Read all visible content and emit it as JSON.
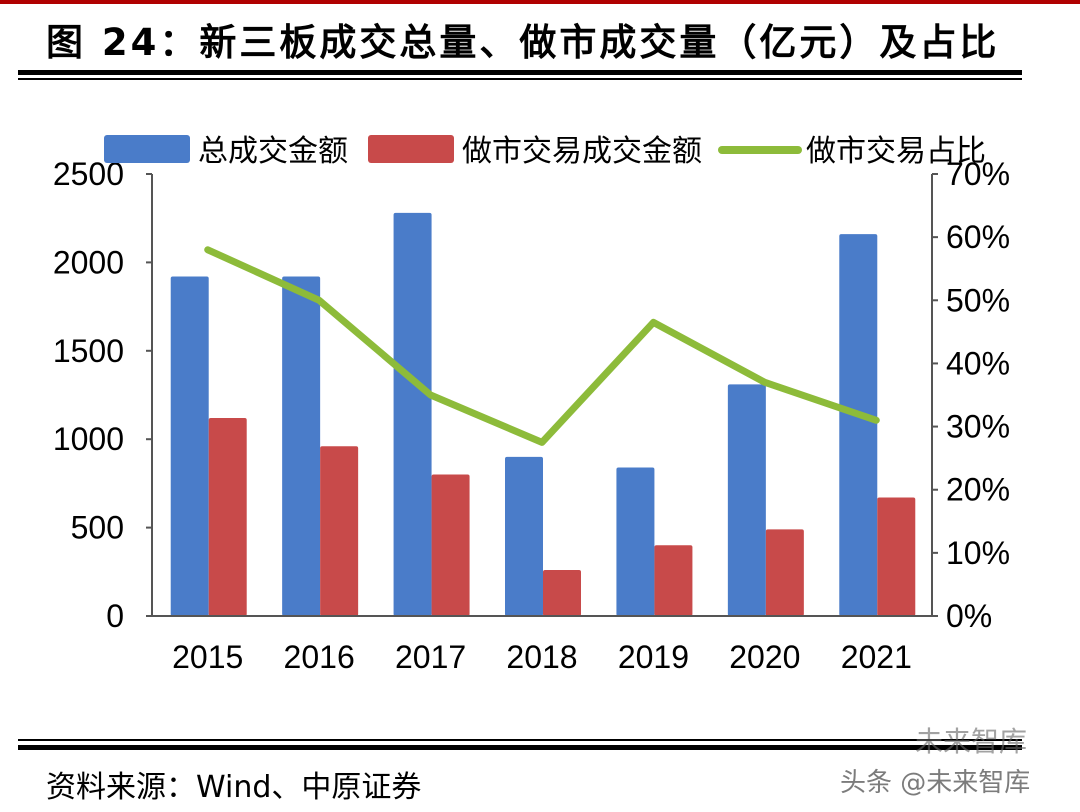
{
  "figure": {
    "title": "图 24：新三板成交总量、做市成交量（亿元）及占比",
    "source": "资料来源：Wind、中原证券",
    "watermark": "头条 @未来智库",
    "watermark_top": "未来智库"
  },
  "chart_data": {
    "type": "bar",
    "title": "",
    "categories": [
      "2015",
      "2016",
      "2017",
      "2018",
      "2019",
      "2020",
      "2021"
    ],
    "series": [
      {
        "name": "总成交金额",
        "type": "bar",
        "axis": "left",
        "color": "#4a7cc9",
        "values": [
          1920,
          1920,
          2280,
          900,
          840,
          1310,
          2160
        ]
      },
      {
        "name": "做市交易成交金额",
        "type": "bar",
        "axis": "left",
        "color": "#c84a4a",
        "values": [
          1120,
          960,
          800,
          260,
          400,
          490,
          670
        ]
      },
      {
        "name": "做市交易占比",
        "type": "line",
        "axis": "right",
        "color": "#8dbb3a",
        "values": [
          58,
          50,
          35,
          27.5,
          46.5,
          37,
          31
        ]
      }
    ],
    "left_axis": {
      "min": 0,
      "max": 2500,
      "ticks": [
        "0",
        "500",
        "1000",
        "1500",
        "2000",
        "2500"
      ]
    },
    "right_axis": {
      "min": 0,
      "max": 70,
      "ticks": [
        "0%",
        "10%",
        "20%",
        "30%",
        "40%",
        "50%",
        "60%",
        "70%"
      ]
    },
    "legend_position": "top",
    "grid": false
  }
}
